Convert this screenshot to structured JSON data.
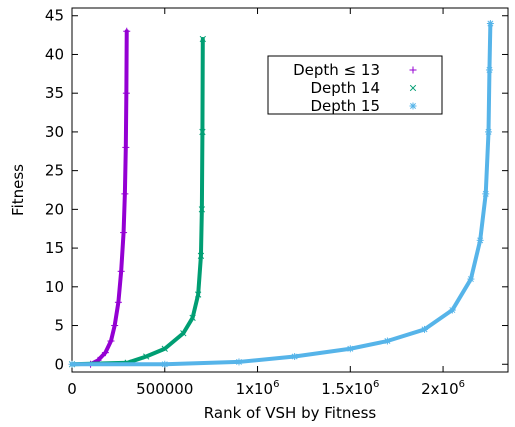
{
  "chart_data": {
    "type": "scatter",
    "xlabel": "Rank of VSH by Fitness",
    "ylabel": "Fitness",
    "xlim": [
      0,
      2350000
    ],
    "ylim": [
      -1,
      46
    ],
    "x_ticks": [
      {
        "value": 0,
        "label": "0"
      },
      {
        "value": 500000,
        "label": "500000"
      },
      {
        "value": 1000000,
        "label": "1x10",
        "exp": "6"
      },
      {
        "value": 1500000,
        "label": "1.5x10",
        "exp": "6"
      },
      {
        "value": 2000000,
        "label": "2x10",
        "exp": "6"
      }
    ],
    "y_ticks": [
      0,
      5,
      10,
      15,
      20,
      25,
      30,
      35,
      40,
      45
    ],
    "grid": false,
    "legend_position": "top-right",
    "series": [
      {
        "name": "Depth ≤ 13",
        "marker": "plus",
        "color": "#9400d3",
        "x": [
          100000,
          140000,
          180000,
          210000,
          230000,
          250000,
          265000,
          278000,
          285000,
          290000,
          293000,
          295000
        ],
        "y": [
          0,
          0.5,
          1.5,
          3,
          5,
          8,
          12,
          17,
          22,
          28,
          35,
          43
        ]
      },
      {
        "name": "Depth 14",
        "marker": "cross",
        "color": "#009e73",
        "x": [
          0,
          300000,
          400000,
          500000,
          600000,
          650000,
          680000,
          695000,
          700000,
          703000,
          705000
        ],
        "y": [
          0,
          0.2,
          1,
          2,
          4,
          6,
          9,
          14,
          20,
          30,
          42
        ]
      },
      {
        "name": "Depth 15",
        "marker": "star",
        "color": "#56b4e9",
        "x": [
          0,
          500000,
          900000,
          1200000,
          1500000,
          1700000,
          1900000,
          2050000,
          2150000,
          2200000,
          2230000,
          2245000,
          2250000,
          2255000
        ],
        "y": [
          0,
          0,
          0.3,
          1,
          2,
          3,
          4.5,
          7,
          11,
          16,
          22,
          30,
          38,
          44
        ]
      }
    ]
  }
}
